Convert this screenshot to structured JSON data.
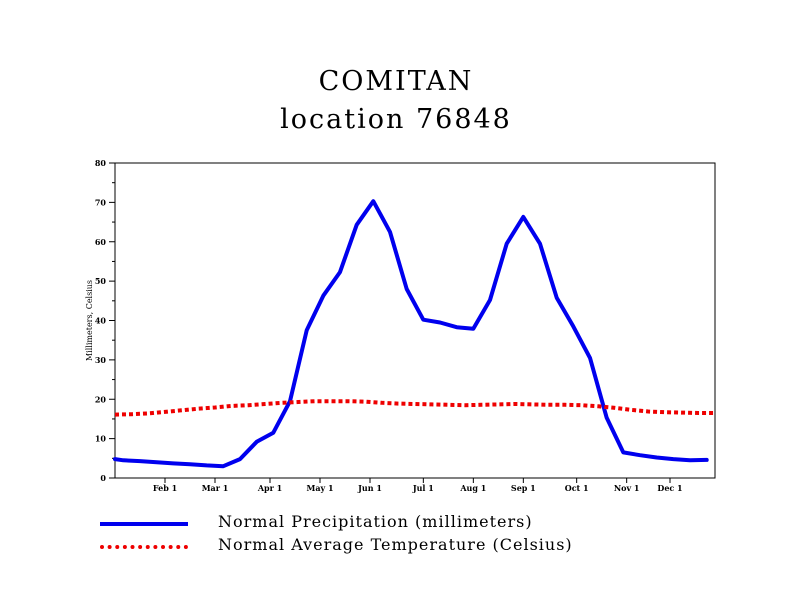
{
  "colors": {
    "precipitation": "#0000ee",
    "temperature": "#ee0000",
    "axis": "#000000"
  },
  "chart_data": {
    "type": "line",
    "title": "COMITAN",
    "subtitle": "location 76848",
    "xlabel": "",
    "ylabel": "Millimeters, Celsius",
    "ylim": [
      0,
      80
    ],
    "yticks": [
      0,
      10,
      20,
      30,
      40,
      50,
      60,
      70,
      80
    ],
    "xlim": [
      1,
      37
    ],
    "xtick_labels": [
      "Feb 1",
      "Mar 1",
      "Apr 1",
      "May 1",
      "Jun 1",
      "Jul 1",
      "Aug 1",
      "Sep 1",
      "Oct 1",
      "Nov 1",
      "Dec 1"
    ],
    "xtick_values": [
      4,
      7,
      10.3,
      13.3,
      16.3,
      19.5,
      22.5,
      25.5,
      28.7,
      31.7,
      34.3
    ],
    "grid": false,
    "legend_placement": "bottom",
    "series": [
      {
        "name": "Normal Precipitation (millimeters)",
        "style": "solid",
        "x": [
          1,
          1.5,
          2.5,
          3.5,
          4.5,
          5.5,
          6.5,
          7.5,
          8.5,
          9.5,
          10.5,
          11.5,
          12.5,
          13.5,
          14.5,
          15.5,
          16.5,
          17.5,
          18.5,
          19.5,
          20.5,
          21.5,
          22.5,
          23.5,
          24.5,
          25.5,
          26.5,
          27.5,
          28.5,
          29.5,
          30.5,
          31.5,
          32.5,
          33.5,
          34.5,
          35.5,
          36.5
        ],
        "values": [
          4.8,
          4.5,
          4.3,
          4.0,
          3.7,
          3.5,
          3.2,
          3.0,
          4.8,
          9.2,
          11.5,
          19.5,
          37.5,
          46.3,
          52.3,
          64.3,
          70.3,
          62.5,
          48.0,
          40.2,
          39.5,
          38.3,
          37.9,
          45.2,
          59.5,
          66.3,
          59.5,
          45.8,
          38.5,
          30.5,
          15.3,
          6.5,
          5.8,
          5.2,
          4.8,
          4.5,
          4.6
        ]
      },
      {
        "name": "Normal Average Temperature (Celsius)",
        "style": "dotted",
        "x": [
          1,
          2,
          3,
          4,
          5,
          6,
          7,
          8,
          9,
          10,
          11,
          12,
          13,
          14,
          15,
          16,
          17,
          18,
          19,
          20,
          21,
          22,
          23,
          24,
          25,
          26,
          27,
          28,
          29,
          30,
          31,
          32,
          33,
          34,
          35,
          36,
          37
        ],
        "values": [
          16.1,
          16.2,
          16.4,
          16.8,
          17.2,
          17.6,
          17.9,
          18.3,
          18.5,
          18.8,
          19.1,
          19.3,
          19.5,
          19.5,
          19.5,
          19.4,
          19.1,
          18.9,
          18.8,
          18.7,
          18.6,
          18.5,
          18.6,
          18.7,
          18.8,
          18.7,
          18.6,
          18.6,
          18.5,
          18.2,
          17.8,
          17.3,
          16.9,
          16.7,
          16.6,
          16.5,
          16.5
        ]
      }
    ]
  },
  "legend": {
    "precipitation_label": "Normal Precipitation (millimeters)",
    "temperature_label": "Normal Average Temperature (Celsius)"
  }
}
